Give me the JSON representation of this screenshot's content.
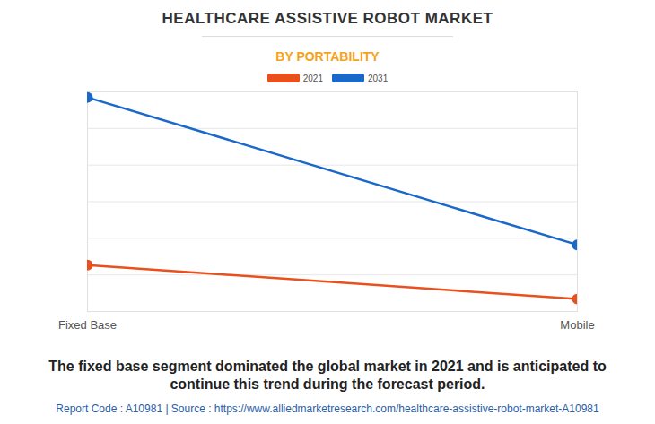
{
  "chart_data": {
    "type": "line",
    "title": "HEALTHCARE ASSISTIVE ROBOT MARKET",
    "subtitle": "BY PORTABILITY",
    "categories": [
      "Fixed Base",
      "Mobile"
    ],
    "series": [
      {
        "name": "2021",
        "color": "#e8501e",
        "values": [
          1.27,
          0.34
        ]
      },
      {
        "name": "2031",
        "color": "#1a68c8",
        "values": [
          5.85,
          1.82
        ]
      }
    ],
    "ylim": [
      0,
      6
    ],
    "yticks": [
      0,
      1,
      2,
      3,
      4,
      5,
      6
    ],
    "grid": true,
    "tick_labels": "x",
    "legend": "top",
    "marker": "circle",
    "caption": "The fixed base segment dominated the global market in 2021 and is anticipated to continue this trend during the forecast period.",
    "source": "Report Code : A10981  |  Source : https://www.alliedmarketresearch.com/healthcare-assistive-robot-market-A10981"
  }
}
